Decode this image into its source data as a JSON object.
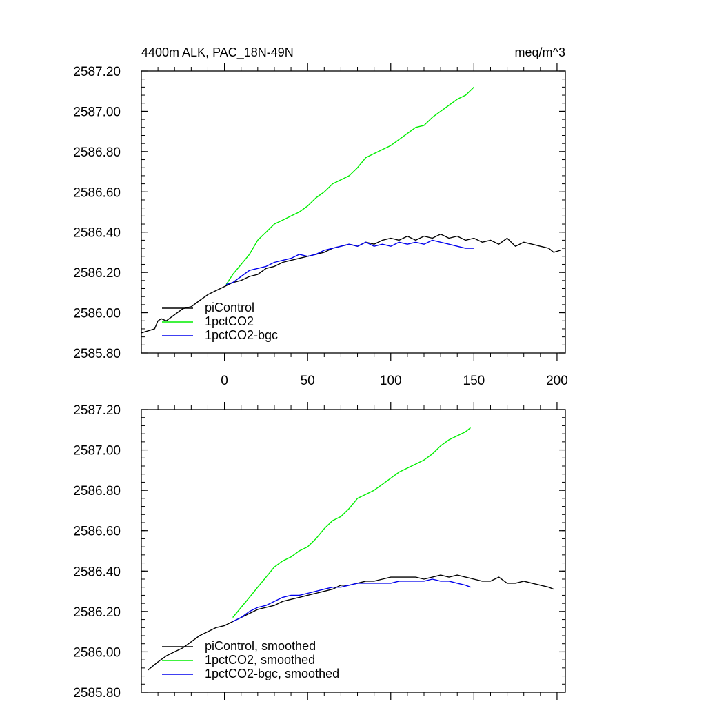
{
  "chart_data": [
    {
      "type": "line",
      "panel": "top",
      "title_left": "4400m ALK, PAC_18N-49N",
      "title_right": "meq/m^3",
      "xlabel": "",
      "ylabel": "",
      "xlim": [
        -50,
        205
      ],
      "ylim": [
        2585.8,
        2587.2
      ],
      "xticks": [
        0,
        50,
        100,
        150,
        200
      ],
      "xtick_labels": [
        "0",
        "50",
        "100",
        "150",
        "200"
      ],
      "yticks": [
        2585.8,
        2586.0,
        2586.2,
        2586.4,
        2586.6,
        2586.8,
        2587.0,
        2587.2
      ],
      "ytick_labels": [
        "2585.80",
        "2586.00",
        "2586.20",
        "2586.40",
        "2586.60",
        "2586.80",
        "2587.00",
        "2587.20"
      ],
      "legend_position": "bottom-left",
      "grid": false,
      "series": [
        {
          "name": "piControl",
          "color": "#000000",
          "x": [
            -50,
            -42,
            -40,
            -38,
            -35,
            -30,
            -25,
            -20,
            -15,
            -10,
            -5,
            0,
            5,
            10,
            15,
            20,
            25,
            30,
            35,
            40,
            45,
            50,
            55,
            60,
            65,
            70,
            75,
            80,
            85,
            90,
            95,
            100,
            105,
            110,
            115,
            120,
            125,
            130,
            135,
            140,
            145,
            150,
            155,
            160,
            165,
            170,
            175,
            180,
            185,
            190,
            195,
            198,
            202
          ],
          "y": [
            2585.9,
            2585.92,
            2585.96,
            2585.97,
            2585.96,
            2585.99,
            2586.02,
            2586.03,
            2586.06,
            2586.09,
            2586.11,
            2586.13,
            2586.15,
            2586.16,
            2586.18,
            2586.19,
            2586.22,
            2586.23,
            2586.25,
            2586.26,
            2586.27,
            2586.28,
            2586.29,
            2586.3,
            2586.32,
            2586.33,
            2586.34,
            2586.33,
            2586.35,
            2586.34,
            2586.36,
            2586.37,
            2586.36,
            2586.38,
            2586.36,
            2586.38,
            2586.37,
            2586.39,
            2586.37,
            2586.38,
            2586.36,
            2586.37,
            2586.35,
            2586.36,
            2586.34,
            2586.37,
            2586.33,
            2586.35,
            2586.34,
            2586.33,
            2586.32,
            2586.3,
            2586.31
          ]
        },
        {
          "name": "1pctCO2",
          "color": "#00ee00",
          "x": [
            1,
            5,
            10,
            15,
            20,
            25,
            30,
            35,
            40,
            45,
            50,
            55,
            60,
            65,
            70,
            75,
            80,
            85,
            90,
            95,
            100,
            105,
            110,
            115,
            120,
            125,
            130,
            135,
            140,
            145,
            150
          ],
          "y": [
            2586.14,
            2586.19,
            2586.24,
            2586.29,
            2586.36,
            2586.4,
            2586.44,
            2586.46,
            2586.48,
            2586.5,
            2586.53,
            2586.57,
            2586.6,
            2586.64,
            2586.66,
            2586.68,
            2586.72,
            2586.77,
            2586.79,
            2586.81,
            2586.83,
            2586.86,
            2586.89,
            2586.92,
            2586.93,
            2586.97,
            2587.0,
            2587.03,
            2587.06,
            2587.08,
            2587.12
          ]
        },
        {
          "name": "1pctCO2-bgc",
          "color": "#0000ee",
          "x": [
            1,
            5,
            10,
            15,
            20,
            25,
            30,
            35,
            40,
            45,
            50,
            55,
            60,
            65,
            70,
            75,
            80,
            85,
            90,
            95,
            100,
            105,
            110,
            115,
            120,
            125,
            130,
            135,
            140,
            145,
            150
          ],
          "y": [
            2586.14,
            2586.15,
            2586.18,
            2586.21,
            2586.22,
            2586.23,
            2586.25,
            2586.26,
            2586.27,
            2586.29,
            2586.28,
            2586.29,
            2586.31,
            2586.32,
            2586.33,
            2586.34,
            2586.33,
            2586.35,
            2586.33,
            2586.34,
            2586.33,
            2586.35,
            2586.34,
            2586.35,
            2586.34,
            2586.36,
            2586.35,
            2586.34,
            2586.33,
            2586.32,
            2586.32
          ]
        }
      ]
    },
    {
      "type": "line",
      "panel": "bottom",
      "xlabel": "",
      "ylabel": "",
      "xlim": [
        -50,
        205
      ],
      "ylim": [
        2585.8,
        2587.2
      ],
      "xticks": [
        0,
        50,
        100,
        150,
        200
      ],
      "yticks": [
        2585.8,
        2586.0,
        2586.2,
        2586.4,
        2586.6,
        2586.8,
        2587.0,
        2587.2
      ],
      "ytick_labels": [
        "2585.80",
        "2586.00",
        "2586.20",
        "2586.40",
        "2586.60",
        "2586.80",
        "2587.00",
        "2587.20"
      ],
      "legend_position": "bottom-left",
      "grid": false,
      "series": [
        {
          "name": "piControl, smoothed",
          "color": "#000000",
          "x": [
            -46,
            -40,
            -35,
            -30,
            -25,
            -20,
            -15,
            -10,
            -5,
            0,
            5,
            10,
            15,
            20,
            25,
            30,
            35,
            40,
            45,
            50,
            55,
            60,
            65,
            70,
            75,
            80,
            85,
            90,
            95,
            100,
            105,
            110,
            115,
            120,
            125,
            130,
            135,
            140,
            145,
            150,
            155,
            160,
            165,
            170,
            175,
            180,
            185,
            190,
            195,
            198
          ],
          "y": [
            2585.91,
            2585.95,
            2585.98,
            2586.0,
            2586.02,
            2586.05,
            2586.08,
            2586.1,
            2586.12,
            2586.13,
            2586.15,
            2586.17,
            2586.19,
            2586.21,
            2586.22,
            2586.23,
            2586.25,
            2586.26,
            2586.27,
            2586.28,
            2586.29,
            2586.3,
            2586.31,
            2586.33,
            2586.33,
            2586.34,
            2586.35,
            2586.35,
            2586.36,
            2586.37,
            2586.37,
            2586.37,
            2586.37,
            2586.36,
            2586.37,
            2586.38,
            2586.37,
            2586.38,
            2586.37,
            2586.36,
            2586.35,
            2586.35,
            2586.37,
            2586.34,
            2586.34,
            2586.35,
            2586.34,
            2586.33,
            2586.32,
            2586.31
          ]
        },
        {
          "name": "1pctCO2, smoothed",
          "color": "#00ee00",
          "x": [
            5,
            10,
            15,
            20,
            25,
            30,
            35,
            40,
            45,
            50,
            55,
            60,
            65,
            70,
            75,
            80,
            85,
            90,
            95,
            100,
            105,
            110,
            115,
            120,
            125,
            130,
            135,
            140,
            145,
            148
          ],
          "y": [
            2586.17,
            2586.22,
            2586.27,
            2586.32,
            2586.37,
            2586.42,
            2586.45,
            2586.47,
            2586.5,
            2586.52,
            2586.56,
            2586.61,
            2586.65,
            2586.67,
            2586.71,
            2586.76,
            2586.78,
            2586.8,
            2586.83,
            2586.86,
            2586.89,
            2586.91,
            2586.93,
            2586.95,
            2586.98,
            2587.02,
            2587.05,
            2587.07,
            2587.09,
            2587.11
          ]
        },
        {
          "name": "1pctCO2-bgc, smoothed",
          "color": "#0000ee",
          "x": [
            5,
            10,
            15,
            20,
            25,
            30,
            35,
            40,
            45,
            50,
            55,
            60,
            65,
            70,
            75,
            80,
            85,
            90,
            95,
            100,
            105,
            110,
            115,
            120,
            125,
            130,
            135,
            140,
            145,
            148
          ],
          "y": [
            2586.15,
            2586.17,
            2586.2,
            2586.22,
            2586.23,
            2586.25,
            2586.27,
            2586.28,
            2586.28,
            2586.29,
            2586.3,
            2586.31,
            2586.32,
            2586.32,
            2586.33,
            2586.34,
            2586.34,
            2586.34,
            2586.34,
            2586.34,
            2586.35,
            2586.35,
            2586.35,
            2586.35,
            2586.36,
            2586.35,
            2586.35,
            2586.34,
            2586.33,
            2586.32
          ]
        }
      ]
    }
  ]
}
